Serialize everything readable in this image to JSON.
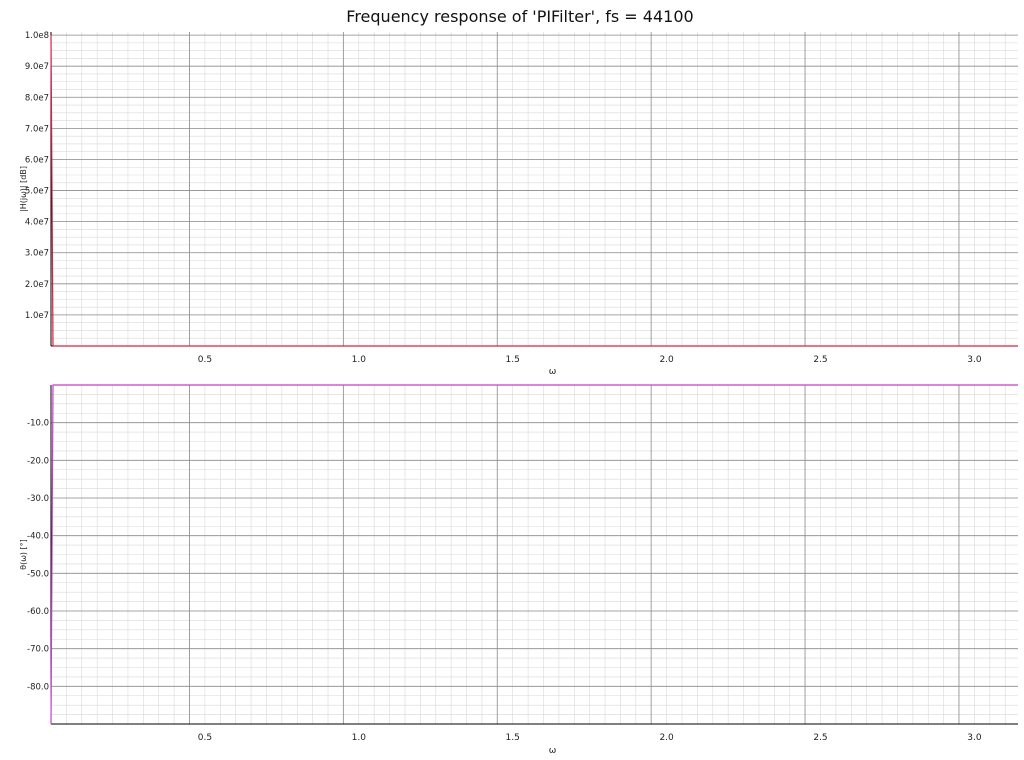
{
  "title": "Frequency response of 'PIFilter', fs = 44100",
  "colors": {
    "magnitude_line": "#d62246",
    "phase_line": "#c83cc8",
    "major_grid": "#8c8c8c",
    "minor_grid": "#d9d9d9",
    "axis": "#000000"
  },
  "chart_data": [
    {
      "type": "line",
      "title": "Frequency response of 'PIFilter', fs = 44100",
      "xlabel": "ω",
      "ylabel": "|H(jω)| [dB]",
      "xlim": [
        0,
        3.14159
      ],
      "ylim": [
        0,
        101000000
      ],
      "grid": true,
      "x_ticks": [
        0.5,
        1.0,
        1.5,
        2.0,
        2.5,
        3.0
      ],
      "x_tick_labels": [
        "0.5",
        "1.0",
        "1.5",
        "2.0",
        "2.5",
        "3.0"
      ],
      "y_ticks": [
        10000000,
        20000000,
        30000000,
        40000000,
        50000000,
        60000000,
        70000000,
        80000000,
        90000000,
        100000000
      ],
      "y_tick_labels": [
        "1.0e7",
        "2.0e7",
        "3.0e7",
        "4.0e7",
        "5.0e7",
        "6.0e7",
        "7.0e7",
        "8.0e7",
        "9.0e7",
        "1.0e8"
      ],
      "series": [
        {
          "x": [
            0,
            0.001,
            0.005,
            0.02,
            0.1,
            0.5,
            1.0,
            1.5,
            2.0,
            2.5,
            3.0,
            3.14159
          ],
          "y": [
            100000000,
            0,
            0,
            0,
            0,
            0,
            0,
            0,
            0,
            0,
            0,
            0
          ]
        }
      ]
    },
    {
      "type": "line",
      "xlabel": "ω",
      "ylabel": "θ(ω) [°]",
      "xlim": [
        0,
        3.14159
      ],
      "ylim": [
        -90,
        0
      ],
      "grid": true,
      "x_ticks": [
        0.5,
        1.0,
        1.5,
        2.0,
        2.5,
        3.0
      ],
      "x_tick_labels": [
        "0.5",
        "1.0",
        "1.5",
        "2.0",
        "2.5",
        "3.0"
      ],
      "y_ticks": [
        -10,
        -20,
        -30,
        -40,
        -50,
        -60,
        -70,
        -80
      ],
      "y_tick_labels": [
        "-10.0",
        "-20.0",
        "-30.0",
        "-40.0",
        "-50.0",
        "-60.0",
        "-70.0",
        "-80.0"
      ],
      "series": [
        {
          "x": [
            0,
            0.001,
            0.005,
            0.02,
            0.1,
            0.5,
            1.0,
            1.5,
            2.0,
            2.5,
            3.0,
            3.14159
          ],
          "y": [
            -90,
            0,
            0,
            0,
            0,
            0,
            0,
            0,
            0,
            0,
            0,
            0
          ]
        }
      ]
    }
  ]
}
